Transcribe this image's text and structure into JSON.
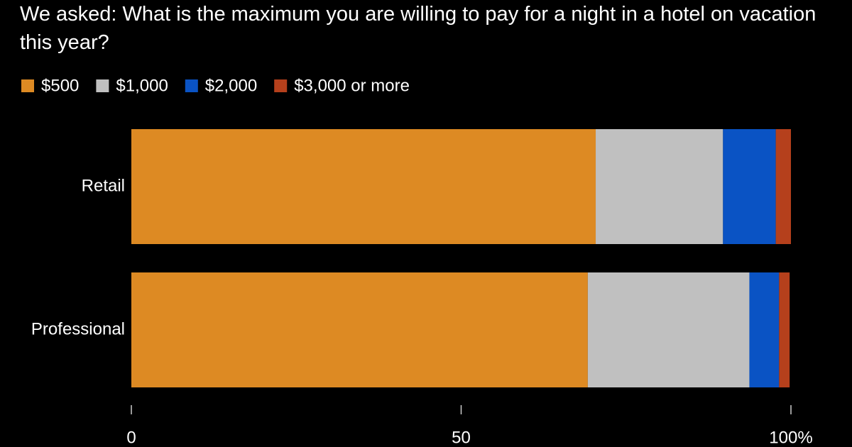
{
  "chart_data": {
    "type": "stacked-bar-horizontal",
    "subtitle": "We asked: What is the maximum you are willing to pay for a night in a hotel on vacation this year?",
    "categories": [
      "Retail",
      "Professional"
    ],
    "series": [
      {
        "name": "$500",
        "color": "#dd8a23",
        "values": [
          70.4,
          69.2
        ]
      },
      {
        "name": "$1,000",
        "color": "#c0c0c0",
        "values": [
          19.3,
          24.5
        ]
      },
      {
        "name": "$2,000",
        "color": "#0a53c4",
        "values": [
          8.0,
          4.5
        ]
      },
      {
        "name": "$3,000 or more",
        "color": "#b5401c",
        "values": [
          2.3,
          1.6
        ]
      }
    ],
    "xlim": [
      0,
      100
    ],
    "xticks": [
      0,
      50,
      {
        "value": 100,
        "label": "100%"
      }
    ],
    "legend": "top-left"
  }
}
